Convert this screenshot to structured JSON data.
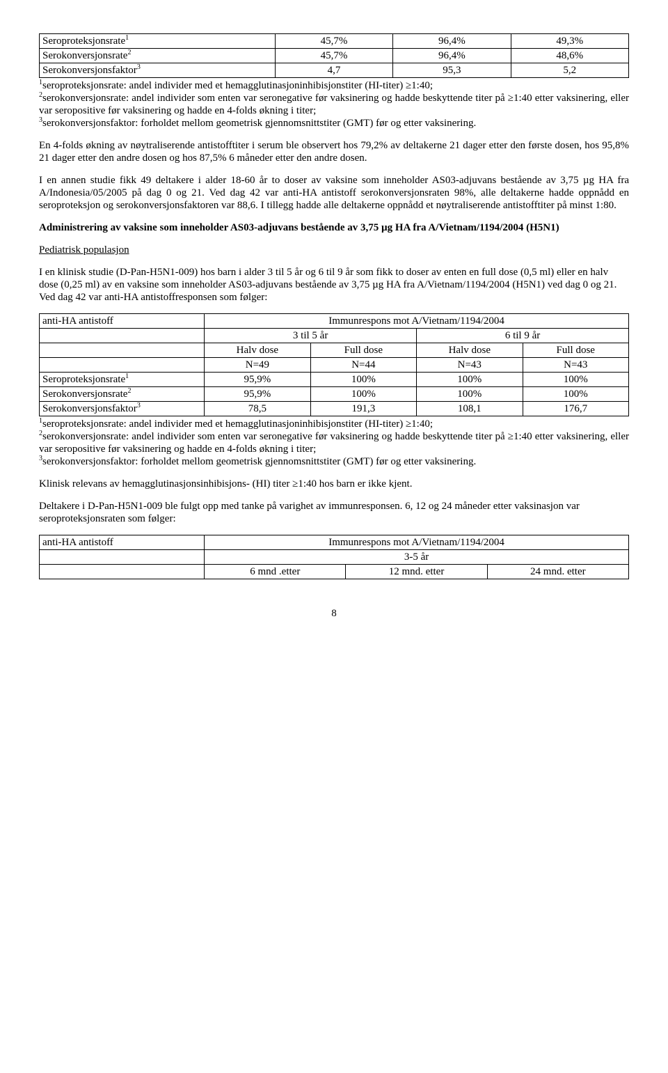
{
  "table1": {
    "rows": [
      {
        "label": "Seroproteksjonsrate",
        "sup": "1",
        "c1": "45,7%",
        "c2": "96,4%",
        "c3": "49,3%"
      },
      {
        "label": "Serokonversjonsrate",
        "sup": "2",
        "c1": "45,7%",
        "c2": "96,4%",
        "c3": "48,6%"
      },
      {
        "label": "Serokonversjonsfaktor",
        "sup": "3",
        "c1": "4,7",
        "c2": "95,3",
        "c3": "5,2"
      }
    ],
    "col_widths": [
      "40%",
      "20%",
      "20%",
      "20%"
    ]
  },
  "footnote1": "seroproteksjonsrate: andel individer med et hemagglutinasjoninhibisjonstiter (HI-titer) ≥1:40;",
  "footnote2": "serokonversjonsrate: andel individer som enten var seronegative før vaksinering og hadde beskyttende titer på ≥1:40 etter vaksinering, eller var seropositive før vaksinering og hadde en 4-folds økning i titer;",
  "footnote3": "serokonversjonsfaktor: forholdet mellom geometrisk gjennomsnittstiter (GMT) før og etter vaksinering.",
  "para1": "En 4-folds økning av nøytraliserende antistofftiter i serum ble observert hos 79,2% av deltakerne 21 dager etter den første dosen, hos 95,8% 21 dager etter den andre dosen og hos 87,5% 6 måneder etter den andre dosen.",
  "para2": "I en annen studie fikk 49 deltakere i alder 18-60 år to doser av vaksine som inneholder AS03-adjuvans bestående av 3,75 µg HA fra A/Indonesia/05/2005 på dag 0 og 21. Ved dag 42 var anti-HA antistoff serokonversjonsraten 98%, alle deltakerne hadde oppnådd en seroproteksjon og serokonversjonsfaktoren var 88,6. I tillegg hadde alle deltakerne oppnådd et nøytraliserende antistofftiter på minst 1:80.",
  "heading1": "Administrering av vaksine som inneholder AS03-adjuvans bestående av 3,75 µg HA fra A/Vietnam/1194/2004 (H5N1)",
  "pediatric": "Pediatrisk populasjon",
  "para3": "I en klinisk studie (D-Pan-H5N1-009) hos barn i alder 3 til 5 år og 6 til 9 år som fikk to doser av enten en full dose (0,5 ml) eller en halv dose (0,25 ml) av en vaksine som inneholder AS03-adjuvans bestående av 3,75 µg HA fra A/Vietnam/1194/2004 (H5N1) ved dag 0 og 21. Ved dag 42 var anti-HA antistoffresponsen som følger:",
  "table2": {
    "header_left": "anti-HA antistoff",
    "header_right": "Immunrespons mot A/Vietnam/1194/2004",
    "age_groups": [
      "3 til 5 år",
      "6 til 9 år"
    ],
    "dose_labels": [
      "Halv dose",
      "Full dose",
      "Halv dose",
      "Full dose"
    ],
    "n_labels": [
      "N=49",
      "N=44",
      "N=43",
      "N=43"
    ],
    "rows": [
      {
        "label": "Seroproteksjonsrate",
        "sup": "1",
        "vals": [
          "95,9%",
          "100%",
          "100%",
          "100%"
        ]
      },
      {
        "label": "Serokonversjonsrate",
        "sup": "2",
        "vals": [
          "95,9%",
          "100%",
          "100%",
          "100%"
        ]
      },
      {
        "label": "Serokonversjonsfaktor",
        "sup": "3",
        "vals": [
          "78,5",
          "191,3",
          "108,1",
          "176,7"
        ]
      }
    ],
    "col_widths": [
      "28%",
      "18%",
      "18%",
      "18%",
      "18%"
    ]
  },
  "para4": "Klinisk relevans av hemagglutinasjonsinhibisjons- (HI) titer ≥1:40 hos barn er ikke kjent.",
  "para5": "Deltakere i D-Pan-H5N1-009 ble fulgt opp med tanke på varighet av immunresponsen. 6, 12 og 24 måneder etter vaksinasjon var seroproteksjonsraten som følger:",
  "table3": {
    "header_left": "anti-HA antistoff",
    "header_right": "Immunrespons mot A/Vietnam/1194/2004",
    "age": "3-5 år",
    "months": [
      "6 mnd .etter",
      "12 mnd. etter",
      "24 mnd. etter"
    ],
    "col_widths": [
      "28%",
      "24%",
      "24%",
      "24%"
    ]
  },
  "pagenum": "8"
}
